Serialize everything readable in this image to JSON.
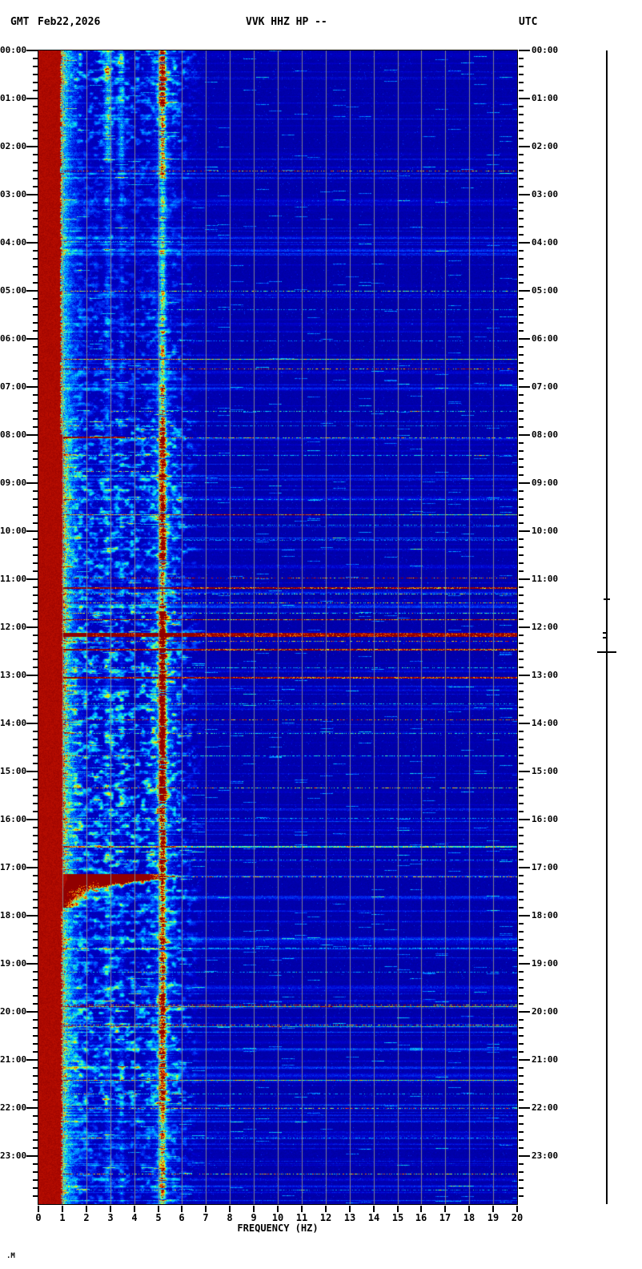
{
  "header": {
    "gmt": "GMT",
    "date": "Feb22,2026",
    "station": "VVK HHZ HP --",
    "utc": "UTC"
  },
  "footer": {
    "watermark": ".M"
  },
  "chart_data": {
    "type": "heatmap",
    "subtype": "seismic_spectrogram",
    "title": "VVK HHZ HP --",
    "date": "Feb22,2026",
    "timezone": "UTC",
    "xlabel": "FREQUENCY (HZ)",
    "x_range": [
      0,
      20
    ],
    "x_tick_labels": [
      "0",
      "1",
      "2",
      "3",
      "4",
      "5",
      "6",
      "7",
      "8",
      "9",
      "10",
      "11",
      "12",
      "13",
      "14",
      "15",
      "16",
      "17",
      "18",
      "19",
      "20"
    ],
    "y_axis": "time_of_day",
    "hour_labels": [
      "00:00",
      "01:00",
      "02:00",
      "03:00",
      "04:00",
      "05:00",
      "06:00",
      "07:00",
      "08:00",
      "09:00",
      "10:00",
      "11:00",
      "12:00",
      "13:00",
      "14:00",
      "15:00",
      "16:00",
      "17:00",
      "18:00",
      "19:00",
      "20:00",
      "21:00",
      "22:00",
      "23:00"
    ],
    "minor_tick_minutes": 10,
    "grid": "vertical_1hz",
    "legend_position": "none",
    "colors": {
      "background": "#ffffff",
      "text": "#000000",
      "grid": "#8c8c8c",
      "frame": "#000000",
      "scalebar": "#000000"
    },
    "colormap": [
      [
        0.0,
        "#000082"
      ],
      [
        0.1,
        "#0000a2"
      ],
      [
        0.22,
        "#0000cd"
      ],
      [
        0.35,
        "#0046ff"
      ],
      [
        0.48,
        "#00b4ff"
      ],
      [
        0.58,
        "#14f0e6"
      ],
      [
        0.66,
        "#78ff78"
      ],
      [
        0.74,
        "#fff000"
      ],
      [
        0.82,
        "#ff8c00"
      ],
      [
        0.9,
        "#e61e00"
      ],
      [
        1.0,
        "#910000"
      ]
    ],
    "dc_band": {
      "note": "saturated dark-red band at lowest frequencies; segments = [start_min, end_min, f_max_hz]",
      "segments": [
        [
          0,
          480,
          0.92
        ],
        [
          480,
          1030,
          1.0
        ],
        [
          1030,
          1440,
          0.96
        ]
      ]
    },
    "mid_activity": {
      "note": "diffuse cyan energy 1-7 Hz; segments = [start_min, end_min, intensity_0to1]",
      "freq_range_hz": [
        1.1,
        7
      ],
      "segments": [
        [
          0,
          45,
          0.55
        ],
        [
          45,
          120,
          0.4
        ],
        [
          120,
          300,
          0.25
        ],
        [
          300,
          460,
          0.32
        ],
        [
          460,
          645,
          0.55
        ],
        [
          645,
          700,
          0.45
        ],
        [
          700,
          1050,
          0.6
        ],
        [
          1050,
          1185,
          0.5
        ],
        [
          1185,
          1315,
          0.55
        ],
        [
          1315,
          1440,
          0.35
        ]
      ]
    },
    "bands": [
      {
        "center_hz": 5.17,
        "sigma_hz": 0.1,
        "halo_sigma_hz": 0.42,
        "halo_amp": 0.22,
        "segments": [
          [
            0,
            70,
            0.8
          ],
          [
            70,
            160,
            0.5
          ],
          [
            160,
            300,
            0.33
          ],
          [
            300,
            420,
            0.38
          ],
          [
            420,
            470,
            0.5
          ],
          [
            470,
            640,
            0.75
          ],
          [
            640,
            700,
            0.55
          ],
          [
            700,
            940,
            0.95
          ],
          [
            940,
            1025,
            0.65
          ],
          [
            1025,
            1180,
            0.6
          ],
          [
            1180,
            1310,
            0.65
          ],
          [
            1310,
            1440,
            0.45
          ]
        ]
      },
      {
        "center_hz": 2.9,
        "sigma_hz": 0.12,
        "halo_sigma_hz": 0.3,
        "halo_amp": 0.1,
        "segments": [
          [
            0,
            140,
            0.3
          ],
          [
            140,
            1440,
            0.12
          ]
        ]
      },
      {
        "center_hz": 3.45,
        "sigma_hz": 0.1,
        "halo_sigma_hz": 0.3,
        "halo_amp": 0.1,
        "segments": [
          [
            0,
            140,
            0.25
          ],
          [
            140,
            1440,
            0.1
          ]
        ]
      }
    ],
    "events": {
      "format": "[start_min, duration_min, f_lo_hz, f_hi_hz, intensity_0to1, dotted01]",
      "list": [
        [
          150,
          1,
          0.9,
          20,
          0.8,
          1
        ],
        [
          238,
          1,
          0.9,
          6,
          0.3,
          1
        ],
        [
          300,
          1,
          0.9,
          20,
          0.5,
          1
        ],
        [
          323,
          1,
          4,
          20,
          0.3,
          1
        ],
        [
          362,
          1,
          0.9,
          20,
          0.28,
          1
        ],
        [
          385,
          1,
          0.9,
          20,
          0.55,
          0
        ],
        [
          397,
          1,
          0.9,
          20,
          0.85,
          1
        ],
        [
          450,
          1,
          3,
          20,
          0.4,
          1
        ],
        [
          468,
          1,
          0.9,
          20,
          0.28,
          1
        ],
        [
          482,
          2,
          0.9,
          3.6,
          1,
          0
        ],
        [
          483,
          1,
          3.6,
          20,
          0.5,
          1
        ],
        [
          505,
          1,
          0.9,
          20,
          0.33,
          1
        ],
        [
          525,
          1,
          0.9,
          5,
          0.5,
          1
        ],
        [
          560,
          1,
          0.9,
          20,
          0.25,
          1
        ],
        [
          579,
          1,
          0.9,
          20,
          0.5,
          0
        ],
        [
          579,
          1,
          6.5,
          12,
          0.4,
          0
        ],
        [
          592,
          1,
          6,
          20,
          0.3,
          1
        ],
        [
          610,
          2,
          6,
          20,
          0.28,
          1
        ],
        [
          658,
          1,
          0.9,
          20,
          0.8,
          1
        ],
        [
          670,
          2,
          0.9,
          20,
          0.95,
          0
        ],
        [
          678,
          1,
          0.9,
          20,
          0.5,
          1
        ],
        [
          689,
          1,
          0.9,
          20,
          0.6,
          1
        ],
        [
          702,
          1,
          0.9,
          20,
          0.45,
          1
        ],
        [
          710,
          1,
          0.9,
          20,
          0.85,
          0
        ],
        [
          727,
          5,
          0.9,
          20,
          1,
          0
        ],
        [
          737,
          1,
          0.9,
          20,
          0.7,
          1
        ],
        [
          747,
          2,
          0.9,
          20,
          0.95,
          0
        ],
        [
          770,
          1,
          0.9,
          20,
          0.4,
          1
        ],
        [
          782,
          2,
          0.9,
          20,
          0.95,
          0
        ],
        [
          815,
          1,
          0.9,
          20,
          0.4,
          1
        ],
        [
          835,
          1,
          0.9,
          20,
          0.8,
          1
        ],
        [
          852,
          1,
          0.9,
          20,
          0.45,
          1
        ],
        [
          880,
          1,
          0.9,
          20,
          0.35,
          1
        ],
        [
          920,
          1,
          0.9,
          20,
          0.6,
          1
        ],
        [
          958,
          1,
          0.9,
          20,
          0.35,
          1
        ],
        [
          993,
          2,
          0.9,
          20,
          0.5,
          0
        ],
        [
          1010,
          1,
          0.9,
          20,
          0.33,
          1
        ],
        [
          1031,
          1,
          0.9,
          20,
          0.55,
          1
        ],
        [
          1120,
          1,
          0.9,
          20,
          0.3,
          1
        ],
        [
          1150,
          1,
          0.9,
          20,
          0.33,
          1
        ],
        [
          1191,
          1,
          0.9,
          20,
          0.85,
          1
        ],
        [
          1193,
          1,
          0.9,
          20,
          0.55,
          0
        ],
        [
          1216,
          1,
          0.9,
          20,
          0.7,
          1
        ],
        [
          1218,
          1,
          0.9,
          20,
          0.45,
          0
        ],
        [
          1285,
          1,
          0.9,
          20,
          0.55,
          0
        ],
        [
          1302,
          1,
          0.9,
          20,
          0.33,
          1
        ],
        [
          1320,
          1,
          0.9,
          20,
          0.65,
          1
        ],
        [
          1357,
          1,
          0.9,
          20,
          0.33,
          1
        ],
        [
          1402,
          1,
          0.9,
          20,
          0.6,
          1
        ],
        [
          1422,
          1,
          0.9,
          20,
          0.3,
          1
        ]
      ]
    },
    "big_event": {
      "note": "strong broadband event ~17:10 with decaying low-frequency coda",
      "onset_min": 1028,
      "full_rows": 6,
      "decay_rows": 11,
      "f_top_hz": 4.5
    }
  }
}
